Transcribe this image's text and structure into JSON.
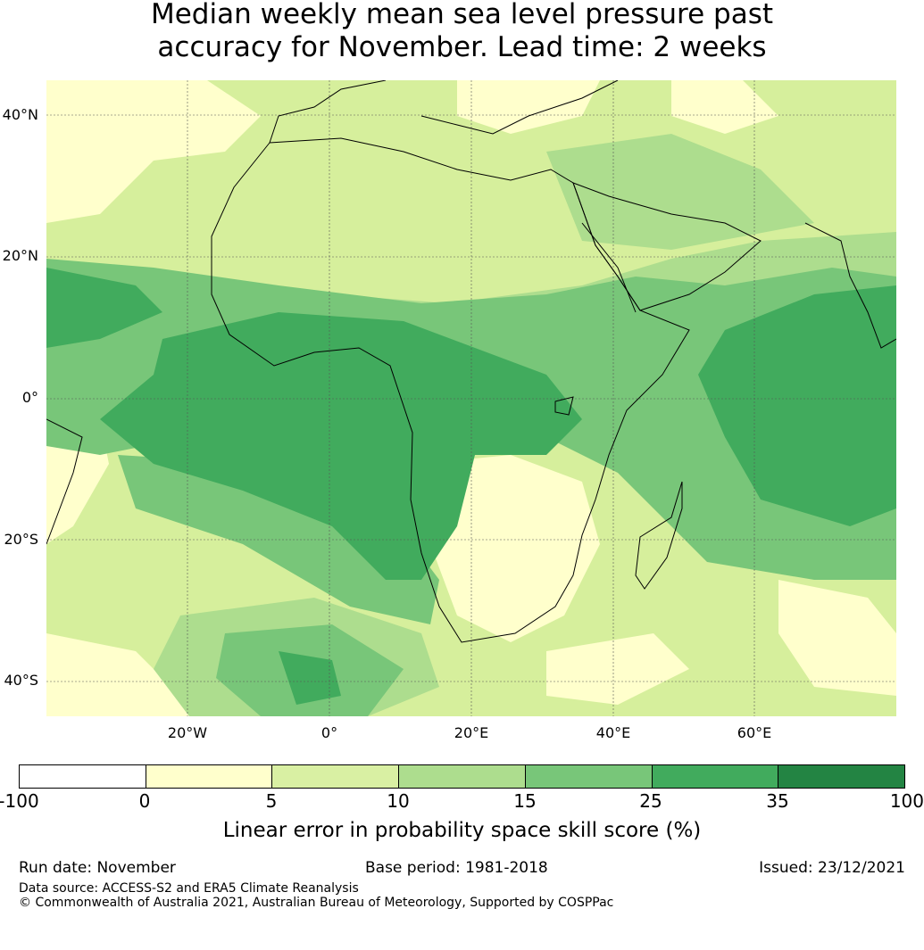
{
  "title_line1": "Median weekly mean sea level pressure past",
  "title_line2": "accuracy for November. Lead time: 2 weeks",
  "map": {
    "lat_labels": [
      "40°N",
      "20°N",
      "0°",
      "20°S",
      "40°S"
    ],
    "lon_labels": [
      "20°W",
      "0°",
      "20°E",
      "40°E",
      "60°E"
    ],
    "extent": {
      "lon_min": -40,
      "lon_max": 80,
      "lat_min": -45,
      "lat_max": 45
    },
    "gridlines": true
  },
  "colorbar": {
    "ticks": [
      "-100",
      "0",
      "5",
      "10",
      "15",
      "25",
      "35",
      "100"
    ],
    "colors": [
      "#ffffff",
      "#ffffcc",
      "#d9f0a3",
      "#addd8e",
      "#78c679",
      "#41ab5d",
      "#238443"
    ],
    "label": "Linear error in probability space skill score (%)"
  },
  "footer": {
    "run_date": "Run date: November",
    "base_period": "Base period: 1981-2018",
    "issued": "Issued: 23/12/2021",
    "data_source": "Data source: ACCESS-S2 and ERA5 Climate Reanalysis",
    "copyright": "© Commonwealth of Australia 2021, Australian Bureau of Meteorology, Supported by COSPPac"
  }
}
